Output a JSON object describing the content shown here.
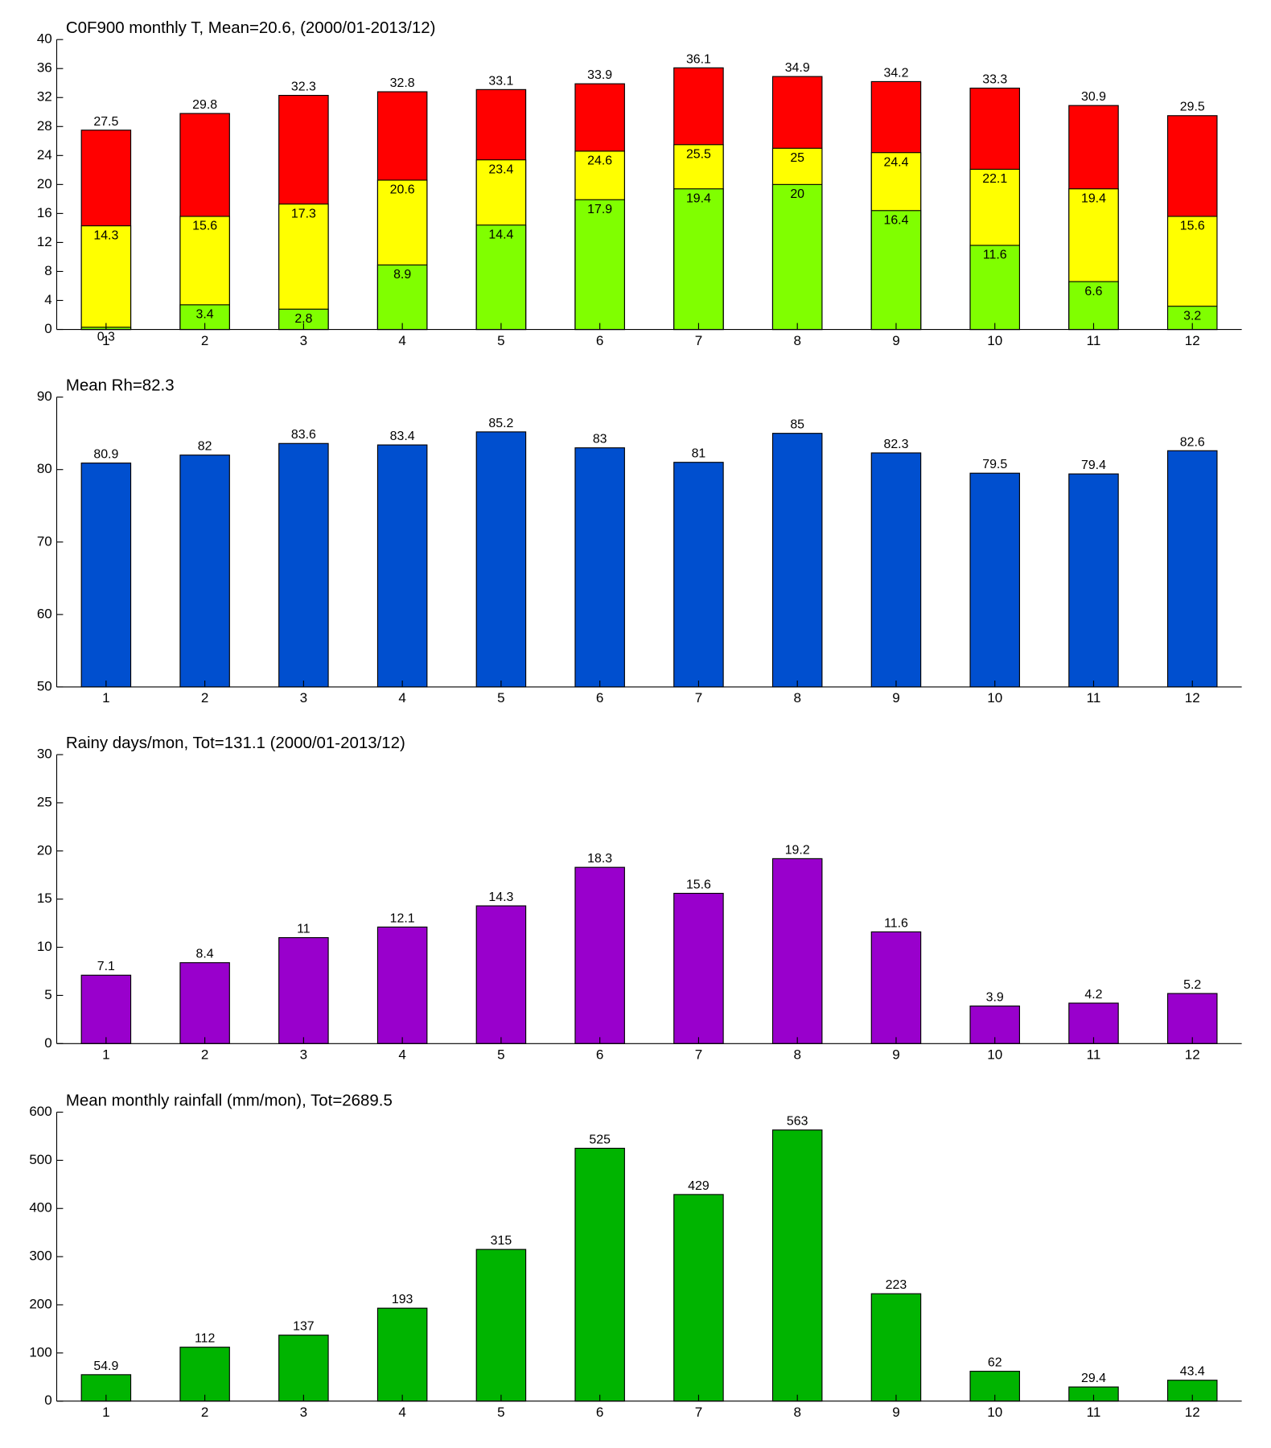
{
  "chart_data": [
    {
      "type": "bar",
      "title": "C0F900 monthly T, Mean=20.6, (2000/01-2013/12)",
      "categories": [
        "1",
        "2",
        "3",
        "4",
        "5",
        "6",
        "7",
        "8",
        "9",
        "10",
        "11",
        "12"
      ],
      "series": [
        {
          "color": "#ff0000",
          "values": [
            27.5,
            29.8,
            32.3,
            32.8,
            33.1,
            33.9,
            36.1,
            34.9,
            34.2,
            33.3,
            30.9,
            29.5
          ]
        },
        {
          "color": "#ffff00",
          "values": [
            14.3,
            15.6,
            17.3,
            20.6,
            23.4,
            24.6,
            25.5,
            25,
            24.4,
            22.1,
            19.4,
            15.6
          ]
        },
        {
          "color": "#80ff00",
          "values": [
            0.3,
            3.4,
            2.8,
            8.9,
            14.4,
            17.9,
            19.4,
            20,
            16.4,
            11.6,
            6.6,
            3.2
          ]
        }
      ],
      "ylim": [
        0,
        40
      ],
      "yticks": [
        0,
        4,
        8,
        12,
        16,
        20,
        24,
        28,
        32,
        36,
        40
      ],
      "grid": false
    },
    {
      "type": "bar",
      "title": "Mean Rh=82.3",
      "categories": [
        "1",
        "2",
        "3",
        "4",
        "5",
        "6",
        "7",
        "8",
        "9",
        "10",
        "11",
        "12"
      ],
      "series": [
        {
          "color": "#004fcf",
          "values": [
            80.9,
            82,
            83.6,
            83.4,
            85.2,
            83,
            81,
            85,
            82.3,
            79.5,
            79.4,
            82.6
          ]
        }
      ],
      "ylim": [
        50,
        90
      ],
      "yticks": [
        50,
        60,
        70,
        80,
        90
      ],
      "grid": false
    },
    {
      "type": "bar",
      "title": "Rainy days/mon, Tot=131.1 (2000/01-2013/12)",
      "categories": [
        "1",
        "2",
        "3",
        "4",
        "5",
        "6",
        "7",
        "8",
        "9",
        "10",
        "11",
        "12"
      ],
      "series": [
        {
          "color": "#9900cc",
          "values": [
            7.1,
            8.4,
            11,
            12.1,
            14.3,
            18.3,
            15.6,
            19.2,
            11.6,
            3.9,
            4.2,
            5.2
          ]
        }
      ],
      "ylim": [
        0,
        30
      ],
      "yticks": [
        0,
        5,
        10,
        15,
        20,
        25,
        30
      ],
      "grid": false
    },
    {
      "type": "bar",
      "title": "Mean monthly rainfall (mm/mon), Tot=2689.5",
      "categories": [
        "1",
        "2",
        "3",
        "4",
        "5",
        "6",
        "7",
        "8",
        "9",
        "10",
        "11",
        "12"
      ],
      "series": [
        {
          "color": "#00b400",
          "values": [
            54.9,
            112,
            137,
            193,
            315,
            525,
            429,
            563,
            223,
            62,
            29.4,
            43.4
          ]
        }
      ],
      "ylim": [
        0,
        600
      ],
      "yticks": [
        0,
        100,
        200,
        300,
        400,
        500,
        600
      ],
      "grid": false
    }
  ]
}
